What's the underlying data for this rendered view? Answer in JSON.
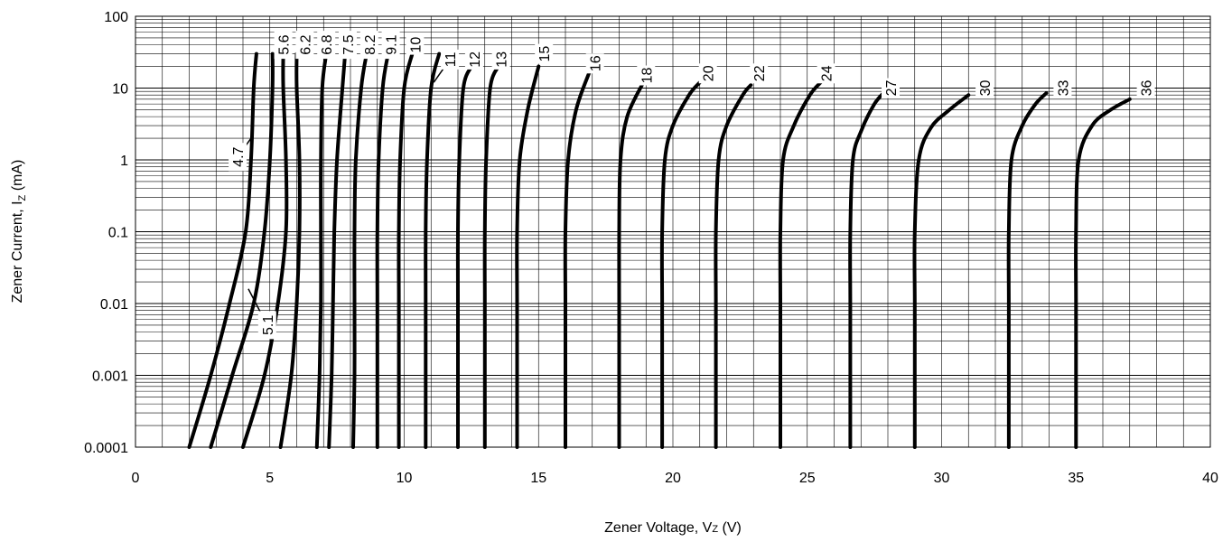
{
  "chart_data": {
    "type": "line",
    "xlabel": {
      "main": "Zener Voltage, V",
      "sub": "Z",
      "unit": " (V)"
    },
    "ylabel": {
      "main": "Zener Current, I",
      "sub": "Z",
      "unit": " (mA)"
    },
    "xlim": [
      0,
      40
    ],
    "ylim": [
      0.0001,
      100
    ],
    "y_scale": "log",
    "grid": true,
    "x_ticks": [
      {
        "value": 0,
        "label": "0"
      },
      {
        "value": 5,
        "label": "5"
      },
      {
        "value": 10,
        "label": "10"
      },
      {
        "value": 15,
        "label": "15"
      },
      {
        "value": 20,
        "label": "20"
      },
      {
        "value": 25,
        "label": "25"
      },
      {
        "value": 30,
        "label": "30"
      },
      {
        "value": 35,
        "label": "35"
      },
      {
        "value": 40,
        "label": "40"
      }
    ],
    "y_ticks": [
      {
        "value": 0.0001,
        "label": "0.0001"
      },
      {
        "value": 0.001,
        "label": "0.001"
      },
      {
        "value": 0.01,
        "label": "0.01"
      },
      {
        "value": 0.1,
        "label": "0.1"
      },
      {
        "value": 1,
        "label": "1"
      },
      {
        "value": 10,
        "label": "10"
      },
      {
        "value": 100,
        "label": "100"
      }
    ],
    "series": [
      {
        "name": "4.7",
        "label_pos": [
          3.8,
          1.1
        ],
        "leader_to": [
          4.3,
          2
        ],
        "points": [
          [
            2.0,
            0.0001
          ],
          [
            2.8,
            0.001
          ],
          [
            3.5,
            0.01
          ],
          [
            4.1,
            0.1
          ],
          [
            4.3,
            1
          ],
          [
            4.4,
            10
          ],
          [
            4.5,
            30
          ]
        ]
      },
      {
        "name": "5.1",
        "label_pos": [
          4.9,
          0.005
        ],
        "leader_to": [
          4.2,
          0.016
        ],
        "points": [
          [
            2.8,
            0.0001
          ],
          [
            3.6,
            0.001
          ],
          [
            4.4,
            0.01
          ],
          [
            4.8,
            0.1
          ],
          [
            5.0,
            1
          ],
          [
            5.1,
            10
          ],
          [
            5.1,
            30
          ]
        ]
      },
      {
        "name": "5.6",
        "label_pos": [
          5.5,
          40
        ],
        "points": [
          [
            4.0,
            0.0001
          ],
          [
            4.8,
            0.001
          ],
          [
            5.3,
            0.01
          ],
          [
            5.6,
            0.1
          ],
          [
            5.6,
            1
          ],
          [
            5.5,
            10
          ],
          [
            5.5,
            30
          ]
        ]
      },
      {
        "name": "6.2",
        "label_pos": [
          6.3,
          40
        ],
        "points": [
          [
            5.4,
            0.0001
          ],
          [
            5.8,
            0.001
          ],
          [
            6.0,
            0.01
          ],
          [
            6.1,
            0.1
          ],
          [
            6.1,
            1
          ],
          [
            6.0,
            10
          ],
          [
            6.0,
            30
          ]
        ]
      },
      {
        "name": "6.8",
        "label_pos": [
          7.1,
          40
        ],
        "points": [
          [
            6.75,
            0.0001
          ],
          [
            6.85,
            0.001
          ],
          [
            6.9,
            0.01
          ],
          [
            6.9,
            0.1
          ],
          [
            6.9,
            1
          ],
          [
            6.95,
            10
          ],
          [
            7.1,
            30
          ]
        ]
      },
      {
        "name": "7.5",
        "label_pos": [
          7.9,
          40
        ],
        "points": [
          [
            7.2,
            0.0001
          ],
          [
            7.3,
            0.001
          ],
          [
            7.35,
            0.01
          ],
          [
            7.4,
            0.1
          ],
          [
            7.5,
            1
          ],
          [
            7.7,
            10
          ],
          [
            7.8,
            30
          ]
        ]
      },
      {
        "name": "8.2",
        "label_pos": [
          8.7,
          40
        ],
        "points": [
          [
            8.1,
            0.0001
          ],
          [
            8.15,
            0.001
          ],
          [
            8.15,
            0.01
          ],
          [
            8.15,
            0.1
          ],
          [
            8.2,
            1
          ],
          [
            8.4,
            10
          ],
          [
            8.6,
            30
          ]
        ]
      },
      {
        "name": "9.1",
        "label_pos": [
          9.5,
          40
        ],
        "points": [
          [
            9.0,
            0.0001
          ],
          [
            9.0,
            0.001
          ],
          [
            9.0,
            0.01
          ],
          [
            9.0,
            0.1
          ],
          [
            9.05,
            1
          ],
          [
            9.2,
            10
          ],
          [
            9.4,
            30
          ]
        ]
      },
      {
        "name": "10",
        "label_pos": [
          10.4,
          40
        ],
        "points": [
          [
            9.8,
            0.0001
          ],
          [
            9.8,
            0.001
          ],
          [
            9.8,
            0.01
          ],
          [
            9.8,
            0.1
          ],
          [
            9.85,
            1
          ],
          [
            10.0,
            10
          ],
          [
            10.3,
            30
          ]
        ]
      },
      {
        "name": "11",
        "label_pos": [
          11.7,
          25
        ],
        "leader_to": [
          11.1,
          12
        ],
        "points": [
          [
            10.8,
            0.0001
          ],
          [
            10.8,
            0.001
          ],
          [
            10.8,
            0.01
          ],
          [
            10.8,
            0.1
          ],
          [
            10.85,
            1
          ],
          [
            11.0,
            10
          ],
          [
            11.3,
            30
          ]
        ]
      },
      {
        "name": "12",
        "label_pos": [
          12.6,
          25
        ],
        "points": [
          [
            12.0,
            0.0001
          ],
          [
            12.0,
            0.001
          ],
          [
            12.0,
            0.01
          ],
          [
            12.0,
            0.1
          ],
          [
            12.05,
            1
          ],
          [
            12.2,
            10
          ],
          [
            12.5,
            20
          ]
        ]
      },
      {
        "name": "13",
        "label_pos": [
          13.6,
          25
        ],
        "points": [
          [
            13.0,
            0.0001
          ],
          [
            13.0,
            0.001
          ],
          [
            13.0,
            0.01
          ],
          [
            13.0,
            0.1
          ],
          [
            13.05,
            1
          ],
          [
            13.2,
            10
          ],
          [
            13.5,
            20
          ]
        ]
      },
      {
        "name": "15",
        "label_pos": [
          15.2,
          30
        ],
        "points": [
          [
            14.2,
            0.0001
          ],
          [
            14.2,
            0.001
          ],
          [
            14.2,
            0.01
          ],
          [
            14.2,
            0.1
          ],
          [
            14.3,
            1
          ],
          [
            14.6,
            5
          ],
          [
            15.0,
            20
          ]
        ]
      },
      {
        "name": "16",
        "label_pos": [
          17.1,
          22
        ],
        "points": [
          [
            16.0,
            0.0001
          ],
          [
            16.0,
            0.001
          ],
          [
            16.0,
            0.01
          ],
          [
            16.0,
            0.1
          ],
          [
            16.1,
            1
          ],
          [
            16.4,
            5
          ],
          [
            16.9,
            17
          ]
        ]
      },
      {
        "name": "18",
        "label_pos": [
          19.0,
          15
        ],
        "points": [
          [
            18.0,
            0.0001
          ],
          [
            18.0,
            0.001
          ],
          [
            18.0,
            0.01
          ],
          [
            18.0,
            0.1
          ],
          [
            18.05,
            1
          ],
          [
            18.3,
            4
          ],
          [
            18.9,
            12
          ]
        ]
      },
      {
        "name": "20",
        "label_pos": [
          21.3,
          16
        ],
        "points": [
          [
            19.6,
            0.0001
          ],
          [
            19.6,
            0.001
          ],
          [
            19.6,
            0.01
          ],
          [
            19.6,
            0.1
          ],
          [
            19.7,
            1
          ],
          [
            20.0,
            3
          ],
          [
            20.6,
            8
          ],
          [
            21.0,
            12
          ]
        ]
      },
      {
        "name": "22",
        "label_pos": [
          23.2,
          16
        ],
        "points": [
          [
            21.6,
            0.0001
          ],
          [
            21.6,
            0.001
          ],
          [
            21.6,
            0.01
          ],
          [
            21.6,
            0.1
          ],
          [
            21.7,
            1
          ],
          [
            22.0,
            3
          ],
          [
            22.6,
            8
          ],
          [
            22.9,
            11
          ]
        ]
      },
      {
        "name": "24",
        "label_pos": [
          25.7,
          16
        ],
        "points": [
          [
            24.0,
            0.0001
          ],
          [
            24.0,
            0.001
          ],
          [
            24.0,
            0.01
          ],
          [
            24.0,
            0.1
          ],
          [
            24.1,
            1
          ],
          [
            24.5,
            3
          ],
          [
            25.1,
            8
          ],
          [
            25.5,
            12
          ]
        ]
      },
      {
        "name": "27",
        "label_pos": [
          28.1,
          10
        ],
        "points": [
          [
            26.6,
            0.0001
          ],
          [
            26.6,
            0.001
          ],
          [
            26.6,
            0.01
          ],
          [
            26.6,
            0.1
          ],
          [
            26.7,
            1
          ],
          [
            27.0,
            2.5
          ],
          [
            27.5,
            6
          ],
          [
            27.9,
            9
          ]
        ]
      },
      {
        "name": "30",
        "label_pos": [
          31.6,
          10
        ],
        "points": [
          [
            29.0,
            0.0001
          ],
          [
            29.0,
            0.001
          ],
          [
            29.0,
            0.01
          ],
          [
            29.0,
            0.1
          ],
          [
            29.15,
            1
          ],
          [
            29.6,
            2.8
          ],
          [
            30.3,
            5
          ],
          [
            31.0,
            8
          ]
        ]
      },
      {
        "name": "33",
        "label_pos": [
          34.5,
          10
        ],
        "points": [
          [
            32.5,
            0.0001
          ],
          [
            32.5,
            0.001
          ],
          [
            32.5,
            0.01
          ],
          [
            32.5,
            0.1
          ],
          [
            32.6,
            1
          ],
          [
            33.0,
            3
          ],
          [
            33.5,
            6
          ],
          [
            33.9,
            8.5
          ]
        ]
      },
      {
        "name": "36",
        "label_pos": [
          37.6,
          10
        ],
        "points": [
          [
            35.0,
            0.0001
          ],
          [
            35.0,
            0.001
          ],
          [
            35.0,
            0.01
          ],
          [
            35.0,
            0.1
          ],
          [
            35.1,
            1
          ],
          [
            35.6,
            3
          ],
          [
            36.3,
            5
          ],
          [
            37.0,
            7
          ]
        ]
      }
    ]
  }
}
